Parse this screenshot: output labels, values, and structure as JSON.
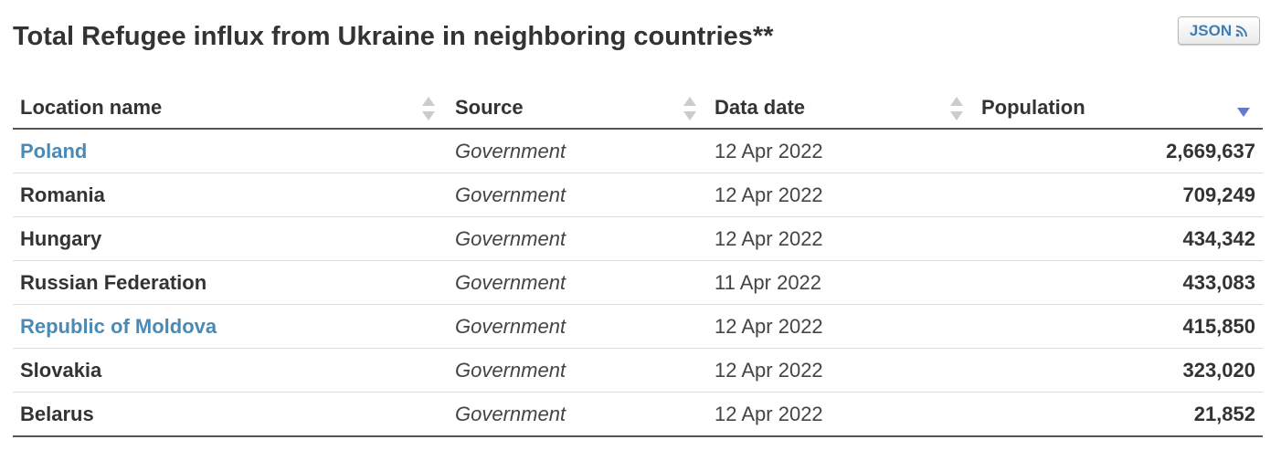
{
  "header": {
    "title": "Total Refugee influx from Ukraine in neighboring countries**",
    "button": "JSON"
  },
  "table": {
    "columns": [
      "Location name",
      "Source",
      "Data date",
      "Population"
    ],
    "rows": [
      {
        "cells": [
          "Poland",
          "Government",
          "12 Apr 2022",
          "2,669,637"
        ],
        "link": true
      },
      {
        "cells": [
          "Romania",
          "Government",
          "12 Apr 2022",
          "709,249"
        ],
        "link": false
      },
      {
        "cells": [
          "Hungary",
          "Government",
          "12 Apr 2022",
          "434,342"
        ],
        "link": false
      },
      {
        "cells": [
          "Russian Federation",
          "Government",
          "11 Apr 2022",
          "433,083"
        ],
        "link": false
      },
      {
        "cells": [
          "Republic of Moldova",
          "Government",
          "12 Apr 2022",
          "415,850"
        ],
        "link": true
      },
      {
        "cells": [
          "Slovakia",
          "Government",
          "12 Apr 2022",
          "323,020"
        ],
        "link": false
      },
      {
        "cells": [
          "Belarus",
          "Government",
          "12 Apr 2022",
          "21,852"
        ],
        "link": false
      }
    ]
  }
}
